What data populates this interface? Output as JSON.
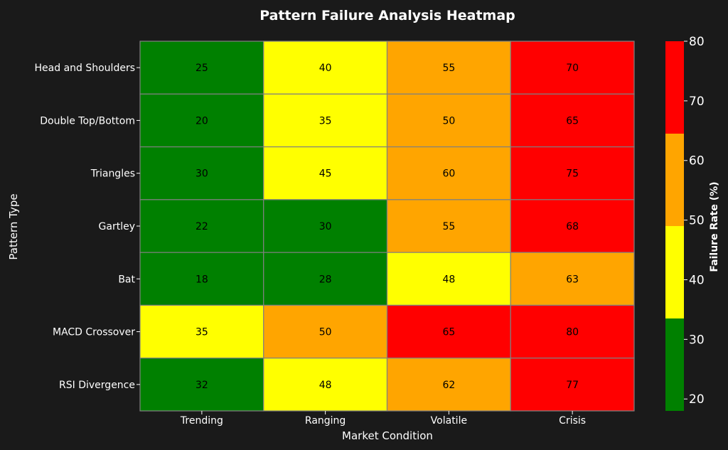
{
  "chart_data": {
    "type": "heatmap",
    "title": "Pattern Failure Analysis Heatmap",
    "xlabel": "Market Condition",
    "ylabel": "Pattern Type",
    "x_categories": [
      "Trending",
      "Ranging",
      "Volatile",
      "Crisis"
    ],
    "y_categories": [
      "Head and Shoulders",
      "Double Top/Bottom",
      "Triangles",
      "Gartley",
      "Bat",
      "MACD Crossover",
      "RSI Divergence"
    ],
    "values": [
      [
        25,
        40,
        55,
        70
      ],
      [
        20,
        35,
        50,
        65
      ],
      [
        30,
        45,
        60,
        75
      ],
      [
        22,
        30,
        55,
        68
      ],
      [
        18,
        28,
        48,
        63
      ],
      [
        35,
        50,
        65,
        80
      ],
      [
        32,
        48,
        62,
        77
      ]
    ],
    "colorbar": {
      "label": "Failure Rate (%)",
      "range": [
        18,
        80
      ],
      "ticks": [
        20,
        30,
        40,
        50,
        60,
        70,
        80
      ],
      "bins": [
        {
          "from": 18,
          "to": 33.5,
          "color": "#008000"
        },
        {
          "from": 33.5,
          "to": 49,
          "color": "#ffff00"
        },
        {
          "from": 49,
          "to": 64.5,
          "color": "#ffa500"
        },
        {
          "from": 64.5,
          "to": 80,
          "color": "#ff0000"
        }
      ]
    },
    "cell_border_color": "#808080",
    "annotation_color": "#000000",
    "background_color": "#1a1a1a"
  }
}
